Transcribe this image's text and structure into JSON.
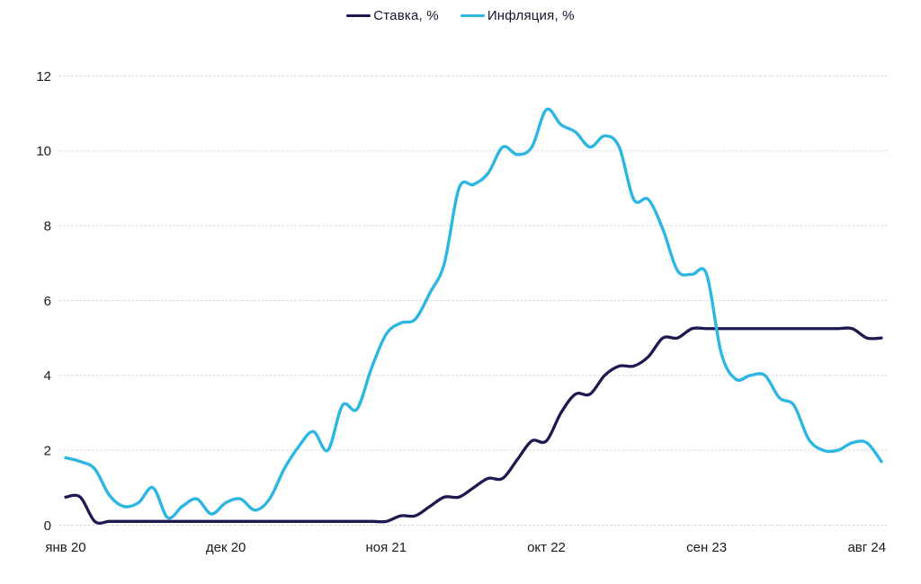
{
  "colors": {
    "background": "#ffffff",
    "grid": "#d6d6d6",
    "axis_text": "#1a1a1a",
    "rate_line": "#1c1a50",
    "inflation_line": "#2db6e2"
  },
  "chart_data": {
    "type": "line",
    "title": "",
    "xlabel": "",
    "ylabel": "",
    "ylim": [
      0,
      12
    ],
    "y_ticks": [
      0,
      2,
      4,
      6,
      8,
      10,
      12
    ],
    "x_tick_labels": [
      "янв 20",
      "дек 20",
      "ноя 21",
      "окт 22",
      "сен 23",
      "авг 24"
    ],
    "x_tick_indices": [
      0,
      11,
      22,
      33,
      44,
      55
    ],
    "points": 57,
    "frequency": "monthly",
    "grid": "horizontal-dashed",
    "legend_position": "top-center",
    "curve": "smooth-spline",
    "series": [
      {
        "name": "Ставка, %",
        "color": "#1c1a50",
        "values": [
          0.75,
          0.75,
          0.1,
          0.1,
          0.1,
          0.1,
          0.1,
          0.1,
          0.1,
          0.1,
          0.1,
          0.1,
          0.1,
          0.1,
          0.1,
          0.1,
          0.1,
          0.1,
          0.1,
          0.1,
          0.1,
          0.1,
          0.1,
          0.25,
          0.25,
          0.5,
          0.75,
          0.75,
          1.0,
          1.25,
          1.25,
          1.75,
          2.25,
          2.25,
          3.0,
          3.5,
          3.5,
          4.0,
          4.25,
          4.25,
          4.5,
          5.0,
          5.0,
          5.25,
          5.25,
          5.25,
          5.25,
          5.25,
          5.25,
          5.25,
          5.25,
          5.25,
          5.25,
          5.25,
          5.25,
          5.0,
          5.0
        ]
      },
      {
        "name": "Инфляция, %",
        "color": "#2db6e2",
        "values": [
          1.8,
          1.7,
          1.5,
          0.8,
          0.5,
          0.6,
          1.0,
          0.2,
          0.5,
          0.7,
          0.3,
          0.6,
          0.7,
          0.4,
          0.7,
          1.5,
          2.1,
          2.5,
          2.0,
          3.2,
          3.1,
          4.2,
          5.1,
          5.4,
          5.5,
          6.2,
          7.0,
          9.0,
          9.1,
          9.4,
          10.1,
          9.9,
          10.1,
          11.1,
          10.7,
          10.5,
          10.1,
          10.4,
          10.1,
          8.7,
          8.7,
          7.9,
          6.8,
          6.7,
          6.7,
          4.6,
          3.9,
          4.0,
          4.0,
          3.4,
          3.2,
          2.3,
          2.0,
          2.0,
          2.2,
          2.2,
          1.7
        ]
      }
    ]
  }
}
